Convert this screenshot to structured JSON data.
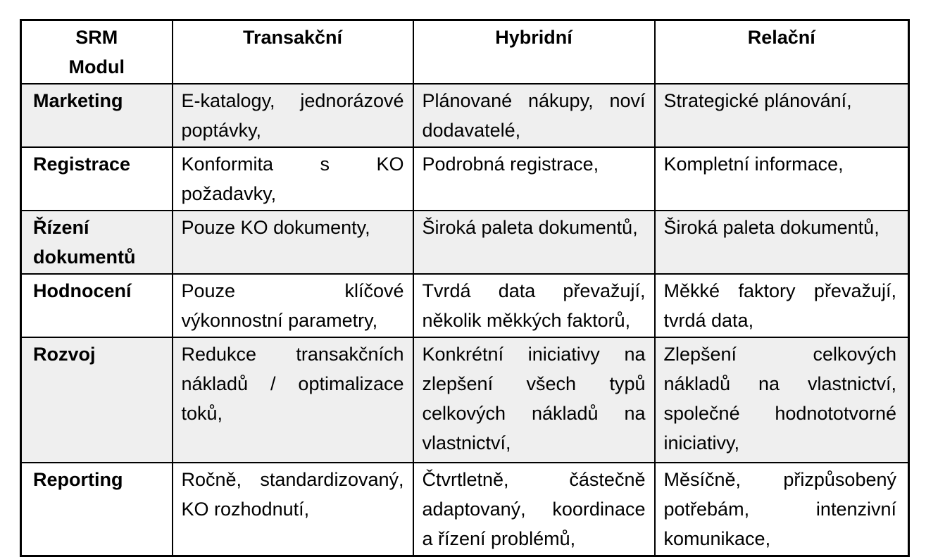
{
  "colors": {
    "page_background": "#ffffff",
    "table_border": "#000000",
    "row_shade": "#efefef",
    "text": "#000000"
  },
  "table": {
    "header": {
      "module": "SRM\nModul",
      "columns": [
        "Transakční",
        "Hybridní",
        "Relační"
      ]
    },
    "rows": [
      {
        "module": "Marketing",
        "transactional": "E-katalogy, jednorázové poptávky,",
        "hybrid": "Plánované nákupy, noví dodavatelé,",
        "relational": "Strategické plánování,"
      },
      {
        "module": "Registrace",
        "transactional": "Konformita s KO požadavky,",
        "hybrid": "Podrobná registrace,",
        "relational": "Kompletní informace,"
      },
      {
        "module": "Řízení\ndokumentů",
        "transactional": "Pouze KO dokumenty,",
        "hybrid": "Široká paleta dokumentů,",
        "relational": "Široká paleta dokumentů,"
      },
      {
        "module": "Hodnocení",
        "transactional": "Pouze klíčové výkonnostní parametry,",
        "hybrid": "Tvrdá data převažují, několik měkkých faktorů,",
        "relational": "Měkké faktory převažují, tvrdá data,"
      },
      {
        "module": "Rozvoj",
        "transactional": "Redukce transakčních nákladů / optimalizace toků,",
        "hybrid": "Konkrétní iniciativy na zlepšení všech typů celkových nákladů na vlastnictví,",
        "relational": "Zlepšení celkových nákladů na vlastnictví, společné hodnototvorné iniciativy,"
      },
      {
        "module": "Reporting",
        "transactional": "Ročně, standardizovaný, KO rozhodnutí,",
        "hybrid": "Čtvrtletně, částečně adaptovaný, koordinace a řízení problémů,",
        "relational": "Měsíčně, přizpůsobený potřebám, intenzivní komunikace,"
      }
    ]
  }
}
